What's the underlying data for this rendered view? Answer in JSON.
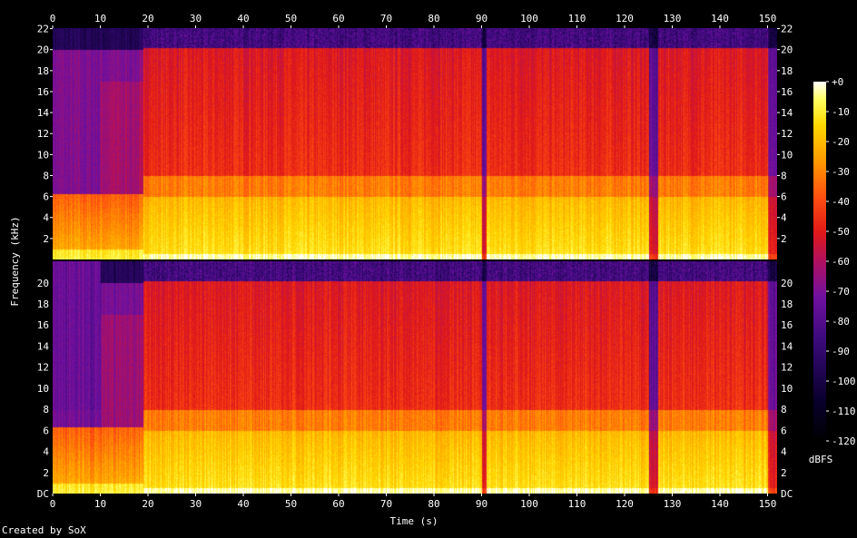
{
  "chart_data": {
    "type": "heatmap",
    "title": "",
    "xlabel": "Time (s)",
    "ylabel": "Frequency (kHz)",
    "xlim": [
      0,
      152
    ],
    "ylim": [
      0,
      22.05
    ],
    "x_ticks": [
      0,
      10,
      20,
      30,
      40,
      50,
      60,
      70,
      80,
      90,
      100,
      110,
      120,
      130,
      140,
      150
    ],
    "y_ticks": [
      2,
      4,
      6,
      8,
      10,
      12,
      14,
      16,
      18,
      20,
      22
    ],
    "y_tick_labels_bottom_channel": [
      "DC",
      "2",
      "4",
      "6",
      "8",
      "10",
      "12",
      "14",
      "16",
      "18",
      "20"
    ],
    "channels": 2,
    "colorbar": {
      "label": "dBFS",
      "range": [
        -120,
        0
      ],
      "tick_labels": [
        "+0",
        "-10",
        "-20",
        "-30",
        "-40",
        "-50",
        "-60",
        "-70",
        "-80",
        "-90",
        "-100",
        "-110",
        "-120"
      ]
    },
    "segments": [
      {
        "start": 0,
        "end": 19,
        "level": "quiet intro, energy mostly below 6 kHz"
      },
      {
        "start": 19,
        "end": 90,
        "level": "loud full-band"
      },
      {
        "start": 90,
        "end": 91,
        "level": "brief dropout"
      },
      {
        "start": 91,
        "end": 125,
        "level": "loud full-band"
      },
      {
        "start": 125,
        "end": 127,
        "level": "dropout"
      },
      {
        "start": 127,
        "end": 150,
        "level": "loud full-band"
      },
      {
        "start": 150,
        "end": 152,
        "level": "fade out"
      }
    ]
  },
  "footer": {
    "credit": "Created by SoX"
  }
}
